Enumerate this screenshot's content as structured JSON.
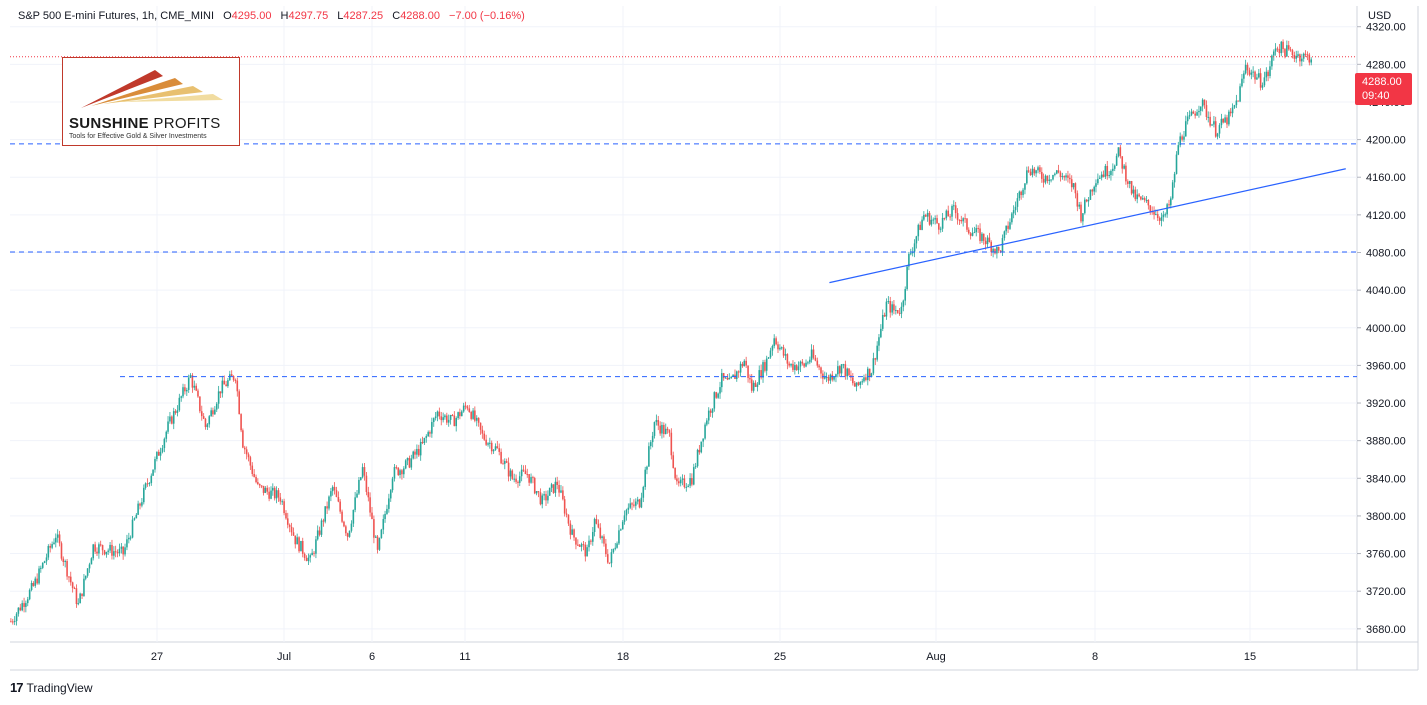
{
  "header": {
    "symbol": "S&P 500 E-mini Futures, 1h, CME_MINI",
    "open_label": "O",
    "open_value": "4295.00",
    "high_label": "H",
    "high_value": "4297.75",
    "low_label": "L",
    "low_value": "4287.25",
    "close_label": "C",
    "close_value": "4288.00",
    "change": "−7.00 (−0.16%)"
  },
  "currency": "USD",
  "last_price": {
    "price": "4288.00",
    "countdown": "09:40",
    "value": 4288.0
  },
  "logo": {
    "title_bold": "SUNSHINE",
    "title_thin": "PROFITS",
    "tagline": "Tools for Effective Gold & Silver Investments"
  },
  "footer": {
    "brand": "TradingView"
  },
  "colors": {
    "up": "#26a69a",
    "down": "#ef5350",
    "line": "#2962ff",
    "dashed": "#2962ff",
    "last_price": "#f23645",
    "grid": "#f0f3fa"
  },
  "chart_data": {
    "type": "candlestick",
    "title": "S&P 500 E-mini Futures, 1h, CME_MINI",
    "ylim": [
      3666,
      4342
    ],
    "y_ticks": [
      3680,
      3720,
      3760,
      3800,
      3840,
      3880,
      3920,
      3960,
      4000,
      4040,
      4080,
      4120,
      4160,
      4200,
      4240,
      4280,
      4320
    ],
    "y_tick_labels": [
      "3680.00",
      "3720.00",
      "3760.00",
      "3800.00",
      "3840.00",
      "3880.00",
      "3920.00",
      "3960.00",
      "4000.00",
      "4040.00",
      "4080.00",
      "4120.00",
      "4160.00",
      "4200.00",
      "4240.00",
      "4280.00",
      "4320.00"
    ],
    "x_tick_labels": [
      "27",
      "Jul",
      "6",
      "11",
      "18",
      "25",
      "Aug",
      "8",
      "15"
    ],
    "close_path": [
      [
        0,
        3688
      ],
      [
        3,
        3725
      ],
      [
        6,
        3780
      ],
      [
        9,
        3705
      ],
      [
        11,
        3768
      ],
      [
        15,
        3760
      ],
      [
        18,
        3830
      ],
      [
        21,
        3895
      ],
      [
        24,
        3948
      ],
      [
        26,
        3895
      ],
      [
        28,
        3935
      ],
      [
        30,
        3950
      ],
      [
        31,
        3878
      ],
      [
        33,
        3830
      ],
      [
        36,
        3820
      ],
      [
        38,
        3775
      ],
      [
        40,
        3752
      ],
      [
        43,
        3830
      ],
      [
        45,
        3780
      ],
      [
        47,
        3850
      ],
      [
        49,
        3760
      ],
      [
        51,
        3845
      ],
      [
        53,
        3855
      ],
      [
        55,
        3875
      ],
      [
        57,
        3910
      ],
      [
        59,
        3900
      ],
      [
        61,
        3918
      ],
      [
        63,
        3885
      ],
      [
        65,
        3870
      ],
      [
        67,
        3840
      ],
      [
        69,
        3845
      ],
      [
        71,
        3815
      ],
      [
        73,
        3835
      ],
      [
        75,
        3780
      ],
      [
        77,
        3760
      ],
      [
        78,
        3795
      ],
      [
        80,
        3750
      ],
      [
        82,
        3805
      ],
      [
        84,
        3815
      ],
      [
        86,
        3900
      ],
      [
        88,
        3885
      ],
      [
        89,
        3830
      ],
      [
        91,
        3840
      ],
      [
        93,
        3905
      ],
      [
        95,
        3945
      ],
      [
        96,
        3940
      ],
      [
        98,
        3965
      ],
      [
        99,
        3935
      ],
      [
        101,
        3965
      ],
      [
        102,
        3990
      ],
      [
        104,
        3960
      ],
      [
        106,
        3960
      ],
      [
        107,
        3970
      ],
      [
        109,
        3945
      ],
      [
        111,
        3960
      ],
      [
        113,
        3935
      ],
      [
        114,
        3950
      ],
      [
        115,
        3955
      ],
      [
        117,
        4025
      ],
      [
        118,
        4018
      ],
      [
        119,
        4020
      ],
      [
        120,
        4075
      ],
      [
        122,
        4120
      ],
      [
        124,
        4110
      ],
      [
        126,
        4125
      ],
      [
        128,
        4105
      ],
      [
        130,
        4095
      ],
      [
        132,
        4080
      ],
      [
        134,
        4125
      ],
      [
        136,
        4170
      ],
      [
        138,
        4160
      ],
      [
        140,
        4165
      ],
      [
        142,
        4150
      ],
      [
        143,
        4120
      ],
      [
        145,
        4160
      ],
      [
        147,
        4170
      ],
      [
        148,
        4185
      ],
      [
        150,
        4140
      ],
      [
        152,
        4130
      ],
      [
        154,
        4115
      ],
      [
        155,
        4135
      ],
      [
        156,
        4195
      ],
      [
        157,
        4215
      ],
      [
        159,
        4240
      ],
      [
        160,
        4225
      ],
      [
        161,
        4210
      ],
      [
        163,
        4225
      ],
      [
        164,
        4245
      ],
      [
        165,
        4278
      ],
      [
        167,
        4262
      ],
      [
        168,
        4270
      ],
      [
        169,
        4300
      ],
      [
        171,
        4292
      ],
      [
        173,
        4288
      ]
    ],
    "horizontal_levels": [
      4195.5,
      4080.5,
      3948
    ],
    "trend_line": {
      "start": [
        109,
        4048
      ],
      "end": [
        178,
        4169
      ]
    },
    "last_close": 4288.0
  }
}
